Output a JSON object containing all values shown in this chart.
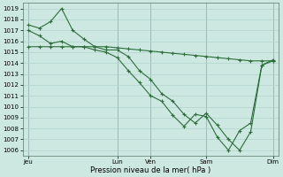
{
  "background_color": "#cde8e0",
  "grid_color": "#b0d4cc",
  "line_color": "#2d6e3a",
  "marker_color": "#2d6e3a",
  "xlabel": "Pression niveau de la mer( hPa )",
  "ylim": [
    1005.5,
    1019.5
  ],
  "yticks": [
    1006,
    1007,
    1008,
    1009,
    1010,
    1011,
    1012,
    1013,
    1014,
    1015,
    1016,
    1017,
    1018,
    1019
  ],
  "xtick_labels": [
    "Jeu",
    "Lun",
    "Ven",
    "Sam",
    "Dim"
  ],
  "xtick_positions": [
    0,
    8,
    11,
    16,
    22
  ],
  "xlim": [
    -0.5,
    22.5
  ],
  "line1_x": [
    0,
    1,
    2,
    3,
    4,
    5,
    6,
    7,
    8,
    9,
    10,
    11,
    12,
    13,
    14,
    15,
    16,
    17,
    18,
    19,
    20,
    21,
    22
  ],
  "line1_y": [
    1015.5,
    1015.5,
    1015.5,
    1015.5,
    1015.5,
    1015.5,
    1015.5,
    1015.5,
    1015.4,
    1015.3,
    1015.2,
    1015.1,
    1015.0,
    1014.9,
    1014.8,
    1014.7,
    1014.6,
    1014.5,
    1014.4,
    1014.3,
    1014.2,
    1014.2,
    1014.2
  ],
  "line2_x": [
    0,
    1,
    2,
    3,
    4,
    5,
    6,
    7,
    8,
    9,
    10,
    11,
    12,
    13,
    14,
    15,
    16,
    17,
    18,
    19,
    20,
    21,
    22
  ],
  "line2_y": [
    1017.5,
    1017.2,
    1017.8,
    1019.0,
    1017.0,
    1016.2,
    1015.5,
    1015.2,
    1015.2,
    1014.6,
    1013.3,
    1012.5,
    1011.2,
    1010.5,
    1009.3,
    1008.5,
    1009.4,
    1008.3,
    1007.0,
    1006.0,
    1007.7,
    1013.8,
    1014.2
  ],
  "line3_x": [
    0,
    1,
    2,
    3,
    4,
    5,
    6,
    7,
    8,
    9,
    10,
    11,
    12,
    13,
    14,
    15,
    16,
    17,
    18,
    19,
    20,
    21,
    22
  ],
  "line3_y": [
    1017.0,
    1016.5,
    1015.8,
    1016.0,
    1015.5,
    1015.5,
    1015.2,
    1015.0,
    1014.5,
    1013.3,
    1012.2,
    1011.0,
    1010.5,
    1009.2,
    1008.2,
    1009.3,
    1009.1,
    1007.2,
    1006.0,
    1007.8,
    1008.5,
    1013.8,
    1014.3
  ],
  "vline_x": [
    0,
    8,
    11,
    16,
    22
  ]
}
